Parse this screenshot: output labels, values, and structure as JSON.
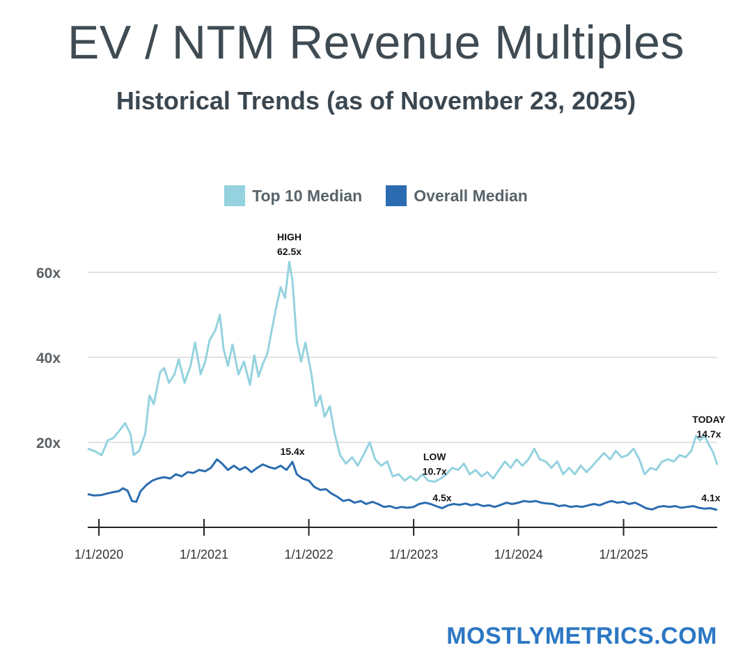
{
  "title": "EV / NTM Revenue Multiples",
  "subtitle": "Historical Trends (as of November 23, 2025)",
  "brand": "MOSTLYMETRICS.COM",
  "colors": {
    "top10": "#94d2df",
    "overall": "#2b6cb0",
    "grid": "#d8d8d8",
    "axis": "#222222"
  },
  "chart_data": {
    "type": "line",
    "ylim": [
      0,
      65
    ],
    "xlim": [
      "2019-11-23",
      "2025-11-23"
    ],
    "yticks": [
      {
        "value": 20,
        "label": "20x"
      },
      {
        "value": 40,
        "label": "40x"
      },
      {
        "value": 60,
        "label": "60x"
      }
    ],
    "xticks": [
      {
        "x": "2020-01-01",
        "label": "1/1/2020"
      },
      {
        "x": "2021-01-01",
        "label": "1/1/2021"
      },
      {
        "x": "2022-01-01",
        "label": "1/1/2022"
      },
      {
        "x": "2023-01-01",
        "label": "1/1/2023"
      },
      {
        "x": "2024-01-01",
        "label": "1/1/2024"
      },
      {
        "x": "2025-01-01",
        "label": "1/1/2025"
      }
    ],
    "legend_position": "top-center",
    "series": [
      {
        "name": "Top 10 Median",
        "color": "#94d2df",
        "points": [
          [
            "2019-11-23",
            18.5
          ],
          [
            "2019-12-15",
            18.0
          ],
          [
            "2020-01-10",
            17.0
          ],
          [
            "2020-02-01",
            20.5
          ],
          [
            "2020-02-20",
            21.0
          ],
          [
            "2020-03-15",
            23.0
          ],
          [
            "2020-04-01",
            24.5
          ],
          [
            "2020-04-20",
            22.0
          ],
          [
            "2020-05-01",
            17.0
          ],
          [
            "2020-05-20",
            18.0
          ],
          [
            "2020-06-10",
            22.0
          ],
          [
            "2020-06-25",
            31.0
          ],
          [
            "2020-07-10",
            29.0
          ],
          [
            "2020-08-01",
            36.5
          ],
          [
            "2020-08-15",
            37.5
          ],
          [
            "2020-09-01",
            34.0
          ],
          [
            "2020-09-20",
            36.0
          ],
          [
            "2020-10-05",
            39.5
          ],
          [
            "2020-10-25",
            34.0
          ],
          [
            "2020-11-15",
            38.0
          ],
          [
            "2020-12-01",
            43.5
          ],
          [
            "2020-12-20",
            36.0
          ],
          [
            "2021-01-05",
            39.0
          ],
          [
            "2021-01-20",
            44.0
          ],
          [
            "2021-02-10",
            46.5
          ],
          [
            "2021-02-25",
            50.0
          ],
          [
            "2021-03-10",
            42.0
          ],
          [
            "2021-03-25",
            38.0
          ],
          [
            "2021-04-10",
            43.0
          ],
          [
            "2021-05-01",
            36.0
          ],
          [
            "2021-05-20",
            39.0
          ],
          [
            "2021-06-10",
            33.5
          ],
          [
            "2021-06-25",
            40.5
          ],
          [
            "2021-07-10",
            35.5
          ],
          [
            "2021-07-25",
            38.5
          ],
          [
            "2021-08-10",
            41.0
          ],
          [
            "2021-08-25",
            46.5
          ],
          [
            "2021-09-10",
            52.0
          ],
          [
            "2021-09-25",
            56.5
          ],
          [
            "2021-10-10",
            54.0
          ],
          [
            "2021-10-25",
            62.5
          ],
          [
            "2021-11-05",
            58.0
          ],
          [
            "2021-11-20",
            44.0
          ],
          [
            "2021-12-05",
            39.0
          ],
          [
            "2021-12-20",
            43.5
          ],
          [
            "2022-01-10",
            36.0
          ],
          [
            "2022-01-25",
            28.5
          ],
          [
            "2022-02-10",
            31.0
          ],
          [
            "2022-02-25",
            26.0
          ],
          [
            "2022-03-15",
            28.5
          ],
          [
            "2022-04-01",
            22.0
          ],
          [
            "2022-04-20",
            17.0
          ],
          [
            "2022-05-10",
            15.0
          ],
          [
            "2022-06-01",
            16.5
          ],
          [
            "2022-06-20",
            14.5
          ],
          [
            "2022-07-10",
            17.0
          ],
          [
            "2022-08-01",
            20.0
          ],
          [
            "2022-08-20",
            16.0
          ],
          [
            "2022-09-10",
            14.5
          ],
          [
            "2022-10-01",
            15.5
          ],
          [
            "2022-10-20",
            12.0
          ],
          [
            "2022-11-10",
            12.5
          ],
          [
            "2022-12-01",
            11.0
          ],
          [
            "2022-12-20",
            12.0
          ],
          [
            "2023-01-10",
            11.0
          ],
          [
            "2023-02-01",
            12.5
          ],
          [
            "2023-02-20",
            11.0
          ],
          [
            "2023-03-15",
            10.7
          ],
          [
            "2023-04-05",
            11.5
          ],
          [
            "2023-04-25",
            12.5
          ],
          [
            "2023-05-15",
            14.0
          ],
          [
            "2023-06-05",
            13.5
          ],
          [
            "2023-06-25",
            15.0
          ],
          [
            "2023-07-15",
            12.5
          ],
          [
            "2023-08-05",
            13.5
          ],
          [
            "2023-08-25",
            12.0
          ],
          [
            "2023-09-15",
            13.0
          ],
          [
            "2023-10-05",
            11.5
          ],
          [
            "2023-10-25",
            13.5
          ],
          [
            "2023-11-15",
            15.5
          ],
          [
            "2023-12-05",
            14.0
          ],
          [
            "2023-12-25",
            16.0
          ],
          [
            "2024-01-15",
            14.5
          ],
          [
            "2024-02-05",
            16.0
          ],
          [
            "2024-02-25",
            18.5
          ],
          [
            "2024-03-15",
            16.0
          ],
          [
            "2024-04-05",
            15.5
          ],
          [
            "2024-04-25",
            14.0
          ],
          [
            "2024-05-15",
            15.5
          ],
          [
            "2024-06-05",
            12.5
          ],
          [
            "2024-06-25",
            14.0
          ],
          [
            "2024-07-15",
            12.5
          ],
          [
            "2024-08-05",
            14.5
          ],
          [
            "2024-08-25",
            13.0
          ],
          [
            "2024-09-15",
            14.5
          ],
          [
            "2024-10-05",
            16.0
          ],
          [
            "2024-10-25",
            17.5
          ],
          [
            "2024-11-15",
            16.0
          ],
          [
            "2024-12-05",
            18.0
          ],
          [
            "2024-12-25",
            16.5
          ],
          [
            "2025-01-15",
            17.0
          ],
          [
            "2025-02-05",
            18.5
          ],
          [
            "2025-02-25",
            16.0
          ],
          [
            "2025-03-15",
            12.5
          ],
          [
            "2025-04-05",
            14.0
          ],
          [
            "2025-04-25",
            13.5
          ],
          [
            "2025-05-15",
            15.5
          ],
          [
            "2025-06-05",
            16.0
          ],
          [
            "2025-06-25",
            15.5
          ],
          [
            "2025-07-15",
            17.0
          ],
          [
            "2025-08-05",
            16.5
          ],
          [
            "2025-08-25",
            18.0
          ],
          [
            "2025-09-10",
            21.5
          ],
          [
            "2025-09-25",
            20.5
          ],
          [
            "2025-10-10",
            21.5
          ],
          [
            "2025-10-25",
            19.5
          ],
          [
            "2025-11-10",
            17.5
          ],
          [
            "2025-11-23",
            14.7
          ]
        ]
      },
      {
        "name": "Overall Median",
        "color": "#2b6cb0",
        "points": [
          [
            "2019-11-23",
            7.8
          ],
          [
            "2019-12-15",
            7.5
          ],
          [
            "2020-01-10",
            7.6
          ],
          [
            "2020-02-01",
            8.0
          ],
          [
            "2020-02-20",
            8.3
          ],
          [
            "2020-03-10",
            8.5
          ],
          [
            "2020-03-25",
            9.2
          ],
          [
            "2020-04-10",
            8.6
          ],
          [
            "2020-04-25",
            6.2
          ],
          [
            "2020-05-10",
            6.0
          ],
          [
            "2020-05-25",
            8.5
          ],
          [
            "2020-06-15",
            10.0
          ],
          [
            "2020-07-05",
            11.0
          ],
          [
            "2020-07-25",
            11.5
          ],
          [
            "2020-08-15",
            11.8
          ],
          [
            "2020-09-05",
            11.5
          ],
          [
            "2020-09-25",
            12.5
          ],
          [
            "2020-10-15",
            12.0
          ],
          [
            "2020-11-05",
            13.0
          ],
          [
            "2020-11-25",
            12.8
          ],
          [
            "2020-12-15",
            13.5
          ],
          [
            "2021-01-05",
            13.2
          ],
          [
            "2021-01-25",
            14.0
          ],
          [
            "2021-02-15",
            16.0
          ],
          [
            "2021-03-05",
            15.0
          ],
          [
            "2021-03-25",
            13.5
          ],
          [
            "2021-04-15",
            14.5
          ],
          [
            "2021-05-05",
            13.5
          ],
          [
            "2021-05-25",
            14.2
          ],
          [
            "2021-06-15",
            13.0
          ],
          [
            "2021-07-05",
            14.0
          ],
          [
            "2021-07-25",
            14.8
          ],
          [
            "2021-08-15",
            14.2
          ],
          [
            "2021-09-05",
            13.8
          ],
          [
            "2021-09-25",
            14.5
          ],
          [
            "2021-10-15",
            13.5
          ],
          [
            "2021-11-05",
            15.4
          ],
          [
            "2021-11-20",
            12.5
          ],
          [
            "2021-12-10",
            11.5
          ],
          [
            "2022-01-01",
            11.0
          ],
          [
            "2022-01-20",
            9.5
          ],
          [
            "2022-02-10",
            8.8
          ],
          [
            "2022-03-01",
            9.0
          ],
          [
            "2022-03-20",
            8.0
          ],
          [
            "2022-04-10",
            7.2
          ],
          [
            "2022-05-01",
            6.2
          ],
          [
            "2022-05-20",
            6.5
          ],
          [
            "2022-06-10",
            5.8
          ],
          [
            "2022-07-01",
            6.2
          ],
          [
            "2022-07-20",
            5.5
          ],
          [
            "2022-08-10",
            6.0
          ],
          [
            "2022-08-30",
            5.5
          ],
          [
            "2022-09-20",
            4.8
          ],
          [
            "2022-10-10",
            5.0
          ],
          [
            "2022-11-01",
            4.5
          ],
          [
            "2022-11-20",
            4.8
          ],
          [
            "2022-12-10",
            4.6
          ],
          [
            "2023-01-01",
            4.8
          ],
          [
            "2023-01-20",
            5.5
          ],
          [
            "2023-02-10",
            5.8
          ],
          [
            "2023-03-01",
            5.5
          ],
          [
            "2023-03-20",
            5.0
          ],
          [
            "2023-04-10",
            4.5
          ],
          [
            "2023-05-01",
            5.2
          ],
          [
            "2023-05-20",
            5.5
          ],
          [
            "2023-06-10",
            5.3
          ],
          [
            "2023-07-01",
            5.6
          ],
          [
            "2023-07-20",
            5.2
          ],
          [
            "2023-08-10",
            5.5
          ],
          [
            "2023-09-01",
            5.0
          ],
          [
            "2023-09-20",
            5.2
          ],
          [
            "2023-10-10",
            4.8
          ],
          [
            "2023-11-01",
            5.3
          ],
          [
            "2023-11-20",
            5.8
          ],
          [
            "2023-12-10",
            5.5
          ],
          [
            "2024-01-01",
            5.8
          ],
          [
            "2024-01-20",
            6.2
          ],
          [
            "2024-02-10",
            6.0
          ],
          [
            "2024-03-01",
            6.2
          ],
          [
            "2024-03-20",
            5.8
          ],
          [
            "2024-04-10",
            5.6
          ],
          [
            "2024-05-01",
            5.5
          ],
          [
            "2024-05-20",
            5.0
          ],
          [
            "2024-06-10",
            5.2
          ],
          [
            "2024-07-01",
            4.8
          ],
          [
            "2024-07-20",
            5.0
          ],
          [
            "2024-08-10",
            4.8
          ],
          [
            "2024-09-01",
            5.2
          ],
          [
            "2024-09-20",
            5.5
          ],
          [
            "2024-10-10",
            5.2
          ],
          [
            "2024-11-01",
            5.8
          ],
          [
            "2024-11-20",
            6.2
          ],
          [
            "2024-12-10",
            5.8
          ],
          [
            "2025-01-01",
            6.0
          ],
          [
            "2025-01-20",
            5.5
          ],
          [
            "2025-02-10",
            5.8
          ],
          [
            "2025-03-01",
            5.2
          ],
          [
            "2025-03-20",
            4.5
          ],
          [
            "2025-04-10",
            4.2
          ],
          [
            "2025-05-01",
            4.8
          ],
          [
            "2025-05-20",
            5.0
          ],
          [
            "2025-06-10",
            4.8
          ],
          [
            "2025-07-01",
            5.0
          ],
          [
            "2025-07-20",
            4.6
          ],
          [
            "2025-08-10",
            4.8
          ],
          [
            "2025-09-01",
            5.0
          ],
          [
            "2025-09-20",
            4.6
          ],
          [
            "2025-10-10",
            4.4
          ],
          [
            "2025-10-30",
            4.5
          ],
          [
            "2025-11-23",
            4.1
          ]
        ]
      }
    ],
    "annotations": [
      {
        "lines": [
          "HIGH",
          "62.5x"
        ],
        "x": "2021-10-25",
        "y": 62.5,
        "placement": "above"
      },
      {
        "lines": [
          "15.4x"
        ],
        "x": "2021-11-05",
        "y": 15.4,
        "placement": "above"
      },
      {
        "lines": [
          "LOW",
          "10.7x"
        ],
        "x": "2023-03-15",
        "y": 10.7,
        "placement": "above"
      },
      {
        "lines": [
          "4.5x"
        ],
        "x": "2023-04-10",
        "y": 4.5,
        "placement": "above"
      },
      {
        "lines": [
          "TODAY",
          "14.7x"
        ],
        "x": "2025-10-25",
        "y": 19.5,
        "placement": "above"
      },
      {
        "lines": [
          "4.1x"
        ],
        "x": "2025-11-01",
        "y": 4.5,
        "placement": "above"
      }
    ]
  }
}
